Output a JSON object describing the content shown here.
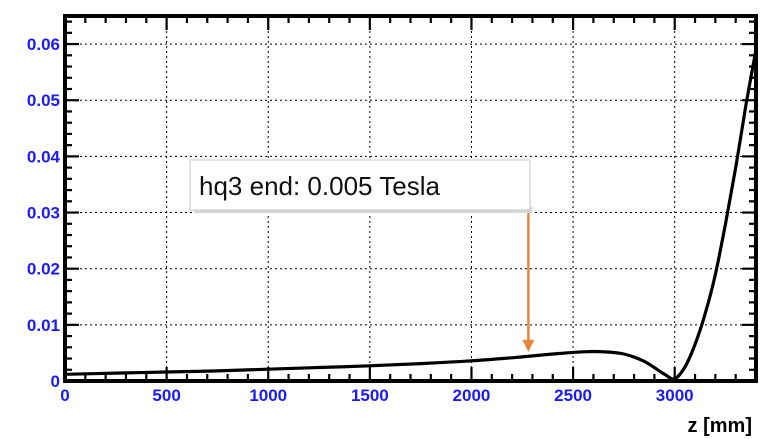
{
  "chart_data": {
    "type": "line",
    "title": "",
    "xlabel": "z [mm]",
    "ylabel": "",
    "xlim": [
      0,
      3400
    ],
    "ylim": [
      0,
      0.065
    ],
    "x_ticks": [
      0,
      500,
      1000,
      1500,
      2000,
      2500,
      3000
    ],
    "x_tick_labels": [
      "0",
      "500",
      "1000",
      "1500",
      "2000",
      "2500",
      "3000"
    ],
    "y_ticks": [
      0,
      0.01,
      0.02,
      0.03,
      0.04,
      0.05,
      0.06
    ],
    "y_tick_labels": [
      "0",
      "0.01",
      "0.02",
      "0.03",
      "0.04",
      "0.05",
      "0.06"
    ],
    "grid": true,
    "series": [
      {
        "x": [
          0,
          250,
          500,
          750,
          1000,
          1250,
          1500,
          1750,
          2000,
          2250,
          2400,
          2550,
          2650,
          2750,
          2850,
          2950,
          3000,
          3050,
          3100,
          3150,
          3200,
          3250,
          3300,
          3350,
          3400
        ],
        "y": [
          0.0012,
          0.0014,
          0.0016,
          0.0018,
          0.0021,
          0.0024,
          0.0027,
          0.0031,
          0.0036,
          0.0043,
          0.0048,
          0.0052,
          0.0052,
          0.0048,
          0.0035,
          0.0012,
          0.0004,
          0.0025,
          0.0065,
          0.012,
          0.019,
          0.028,
          0.038,
          0.049,
          0.059
        ]
      }
    ],
    "colors": {
      "curve": "#000000",
      "tick_labels": "#1a1aff",
      "grid": "#000000",
      "arrow": "#e8873a"
    },
    "annotation": {
      "text": "hq3 end: 0.005 Tesla",
      "arrow_x": 2280,
      "arrow_y": 0.005
    }
  }
}
